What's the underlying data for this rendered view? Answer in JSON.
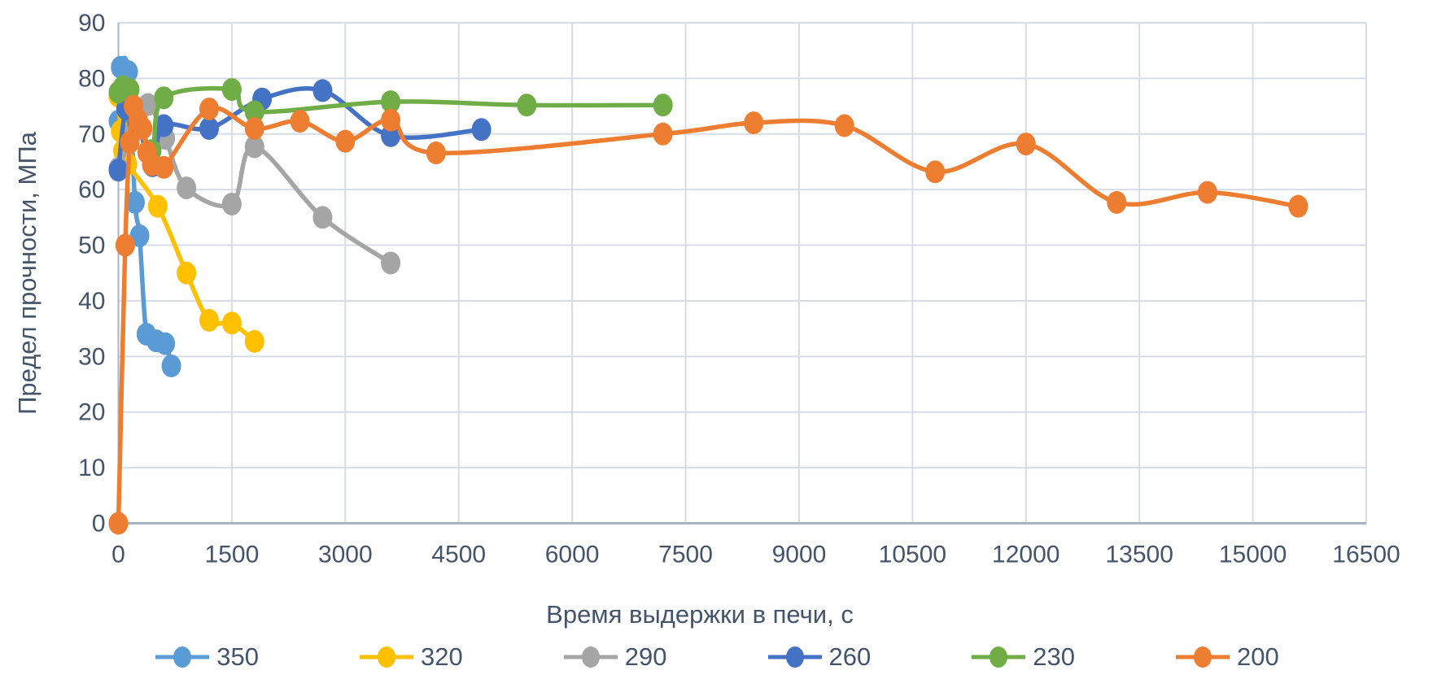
{
  "chart_data": {
    "type": "line",
    "title": "",
    "xlabel": "Время выдержки в печи, с",
    "ylabel": "Предел прочности, МПа",
    "xlim": [
      0,
      16500
    ],
    "ylim": [
      0,
      90
    ],
    "x_ticks": [
      0,
      1500,
      3000,
      4500,
      6000,
      7500,
      9000,
      10500,
      12000,
      13500,
      15000,
      16500
    ],
    "y_ticks": [
      0,
      10,
      20,
      30,
      40,
      50,
      60,
      70,
      80,
      90
    ],
    "grid": true,
    "line_style": "smooth",
    "marker": "circle",
    "legend_position": "bottom",
    "series": [
      {
        "name": "350",
        "color": "#5B9BD5",
        "points": [
          [
            0,
            72.3
          ],
          [
            30,
            82
          ],
          [
            130,
            81.2
          ],
          [
            220,
            57.7
          ],
          [
            280,
            51.7
          ],
          [
            370,
            34
          ],
          [
            500,
            32.8
          ],
          [
            620,
            32.3
          ],
          [
            700,
            28.3
          ]
        ]
      },
      {
        "name": "320",
        "color": "#FFC000",
        "points": [
          [
            0,
            76.8
          ],
          [
            30,
            70.5
          ],
          [
            60,
            67
          ],
          [
            120,
            64.6
          ],
          [
            520,
            57
          ],
          [
            900,
            45
          ],
          [
            1200,
            36.5
          ],
          [
            1500,
            36
          ],
          [
            1800,
            32.7
          ]
        ]
      },
      {
        "name": "290",
        "color": "#A5A5A5",
        "points": [
          [
            0,
            63.8
          ],
          [
            200,
            70.5
          ],
          [
            390,
            75.3
          ],
          [
            620,
            69.2
          ],
          [
            900,
            60.3
          ],
          [
            1500,
            57.4
          ],
          [
            1800,
            67.7
          ],
          [
            2700,
            55
          ],
          [
            3600,
            46.8
          ]
        ]
      },
      {
        "name": "260",
        "color": "#4472C4",
        "points": [
          [
            0,
            63.5
          ],
          [
            100,
            74.5
          ],
          [
            250,
            72
          ],
          [
            450,
            64.3
          ],
          [
            600,
            71.5
          ],
          [
            1200,
            71
          ],
          [
            1900,
            76.3
          ],
          [
            2700,
            77.8
          ],
          [
            3600,
            69.7
          ],
          [
            4800,
            70.8
          ]
        ]
      },
      {
        "name": "230",
        "color": "#70AD47",
        "points": [
          [
            0,
            77.5
          ],
          [
            60,
            78.5
          ],
          [
            150,
            78
          ],
          [
            440,
            67
          ],
          [
            600,
            76.5
          ],
          [
            1500,
            78
          ],
          [
            1800,
            74
          ],
          [
            3600,
            75.8
          ],
          [
            5400,
            75.2
          ],
          [
            7200,
            75.2
          ]
        ]
      },
      {
        "name": "200",
        "color": "#ED7D31",
        "points": [
          [
            0,
            0
          ],
          [
            90,
            50
          ],
          [
            150,
            68.5
          ],
          [
            200,
            75
          ],
          [
            260,
            72.5
          ],
          [
            320,
            71
          ],
          [
            380,
            66.7
          ],
          [
            440,
            64.5
          ],
          [
            600,
            64
          ],
          [
            1200,
            74.5
          ],
          [
            1800,
            71
          ],
          [
            2400,
            72.3
          ],
          [
            3000,
            68.7
          ],
          [
            3600,
            72.5
          ],
          [
            4200,
            66.6
          ],
          [
            7200,
            70
          ],
          [
            8400,
            72
          ],
          [
            9600,
            71.5
          ],
          [
            10800,
            63.2
          ],
          [
            12000,
            68.2
          ],
          [
            13200,
            57.7
          ],
          [
            14400,
            59.5
          ],
          [
            15600,
            57
          ]
        ]
      }
    ]
  },
  "styles": {
    "label_color": "#44546A",
    "grid_color": "#D8DCE6",
    "axis_color": "#A9B3C6",
    "background": "#FFFFFF",
    "tick_font_size": 30,
    "marker_rx": 12,
    "marker_ry": 14,
    "line_width": 5.5
  }
}
